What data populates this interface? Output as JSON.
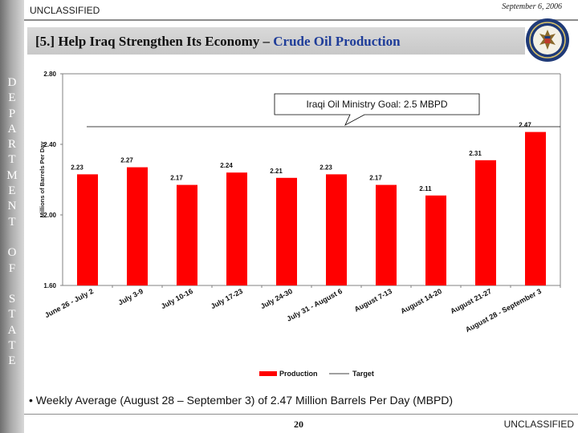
{
  "header": {
    "marking_top": "UNCLASSIFIED",
    "date": "September 6, 2006",
    "title_prefix": "[5.] Help Iraq Strengthen Its Economy – ",
    "title_accent": "Crude Oil Production"
  },
  "sidebar": {
    "letters": [
      "D",
      "E",
      "P",
      "A",
      "R",
      "T",
      "M",
      "E",
      "N",
      "T",
      "",
      "O",
      "F",
      "",
      "S",
      "T",
      "A",
      "T",
      "E"
    ]
  },
  "seal": {
    "icon": "department-of-state-seal-icon"
  },
  "chart_data": {
    "type": "bar",
    "ylabel": "Millions of Barrels Per Day",
    "ylim": [
      1.6,
      2.6
    ],
    "yticks": [
      "1.60",
      "2.00",
      "2.40",
      "2.80"
    ],
    "ytick_values": [
      1.6,
      2.0,
      2.4,
      2.8
    ],
    "categories": [
      "June 26 - July 2",
      "July 3-9",
      "July 10-16",
      "July 17-23",
      "July 24-30",
      "July 31 - August 6",
      "August 7-13",
      "August 14-20",
      "August 21-27",
      "August 28 - September 3"
    ],
    "series": [
      {
        "name": "Production",
        "type": "bar",
        "color": "#ff0000",
        "values": [
          2.23,
          2.27,
          2.17,
          2.24,
          2.21,
          2.23,
          2.17,
          2.11,
          2.31,
          2.47
        ],
        "labels": [
          "2.23",
          "2.27",
          "2.17",
          "2.24",
          "2.21",
          "2.23",
          "2.17",
          "2.11",
          "2.31",
          "2.47"
        ]
      },
      {
        "name": "Target",
        "type": "line",
        "color": "#000000",
        "value": 2.5
      }
    ],
    "annotation": "Iraqi Oil Ministry Goal:  2.5 MBPD",
    "legend_position": "bottom",
    "grid": false
  },
  "footer": {
    "note": "• Weekly Average (August 28 – September 3) of 2.47 Million Barrels Per Day (MBPD)",
    "page_number": "20",
    "marking_bottom": "UNCLASSIFIED"
  }
}
